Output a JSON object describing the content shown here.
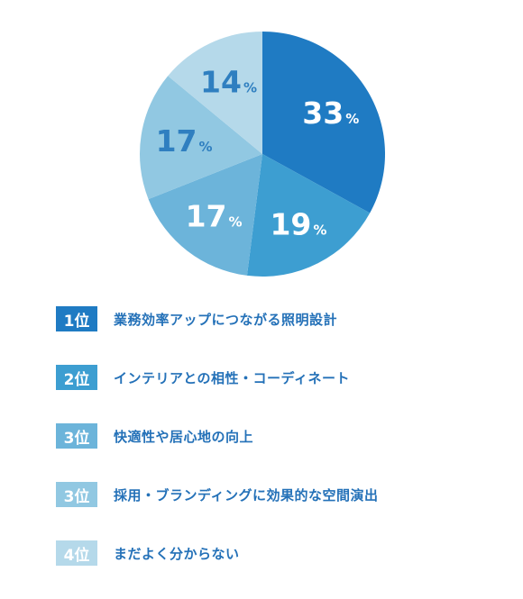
{
  "chart_data": {
    "type": "pie",
    "unit": "%",
    "slices": [
      {
        "value": 33,
        "color": "#1f7bc3",
        "label_color": "#ffffff"
      },
      {
        "value": 19,
        "color": "#3d9ed1",
        "label_color": "#ffffff"
      },
      {
        "value": 17,
        "color": "#6cb4da",
        "label_color": "#ffffff"
      },
      {
        "value": 17,
        "color": "#91c8e2",
        "label_color": "#2f7fc0"
      },
      {
        "value": 14,
        "color": "#b5d9ea",
        "label_color": "#2f7fc0"
      }
    ]
  },
  "legend": [
    {
      "rank": "1位",
      "text": "業務効率アップにつながる照明設計",
      "color": "#1f7bc3"
    },
    {
      "rank": "2位",
      "text": "インテリアとの相性・コーディネート",
      "color": "#3d9ed1"
    },
    {
      "rank": "3位",
      "text": "快適性や居心地の向上",
      "color": "#6cb4da"
    },
    {
      "rank": "3位",
      "text": "採用・ブランディングに効果的な空間演出",
      "color": "#91c8e2"
    },
    {
      "rank": "4位",
      "text": "まだよく分からない",
      "color": "#b5d9ea"
    }
  ]
}
